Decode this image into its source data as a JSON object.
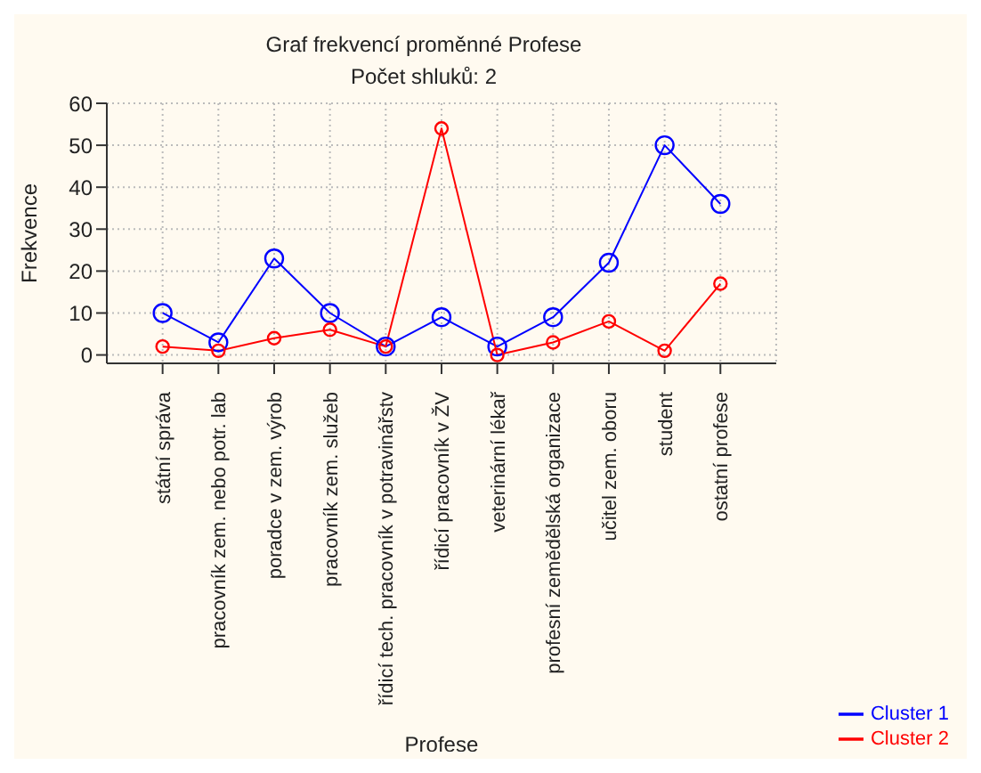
{
  "chart_data": {
    "type": "line",
    "title": "Graf frekvencí proměnné Profese",
    "subtitle": "Počet shluků: 2",
    "xlabel": "Profese",
    "ylabel": "Frekvence",
    "categories": [
      "státní správa",
      "pracovník zem. nebo potr. lab",
      "poradce v zem. výrob",
      "pracovník zem. služeb",
      "řídicí tech. pracovník v potravinářstv",
      "řídicí pracovník v ŽV",
      "veterinární lékař",
      "profesní zemědělská organizace",
      "učitel zem. oboru",
      "student",
      "ostatní profese"
    ],
    "series": [
      {
        "name": "Cluster 1",
        "color": "#0000ff",
        "values": [
          10,
          3,
          23,
          10,
          2,
          9,
          2,
          9,
          22,
          50,
          36
        ]
      },
      {
        "name": "Cluster 2",
        "color": "#ff0000",
        "values": [
          2,
          1,
          4,
          6,
          2,
          54,
          0,
          3,
          8,
          1,
          17
        ]
      }
    ],
    "ylim": [
      -2,
      60
    ],
    "yticks": [
      0,
      10,
      20,
      30,
      40,
      50,
      60
    ],
    "grid": true,
    "legend": "bottom right",
    "marker": "circle",
    "line_style": "solid"
  }
}
